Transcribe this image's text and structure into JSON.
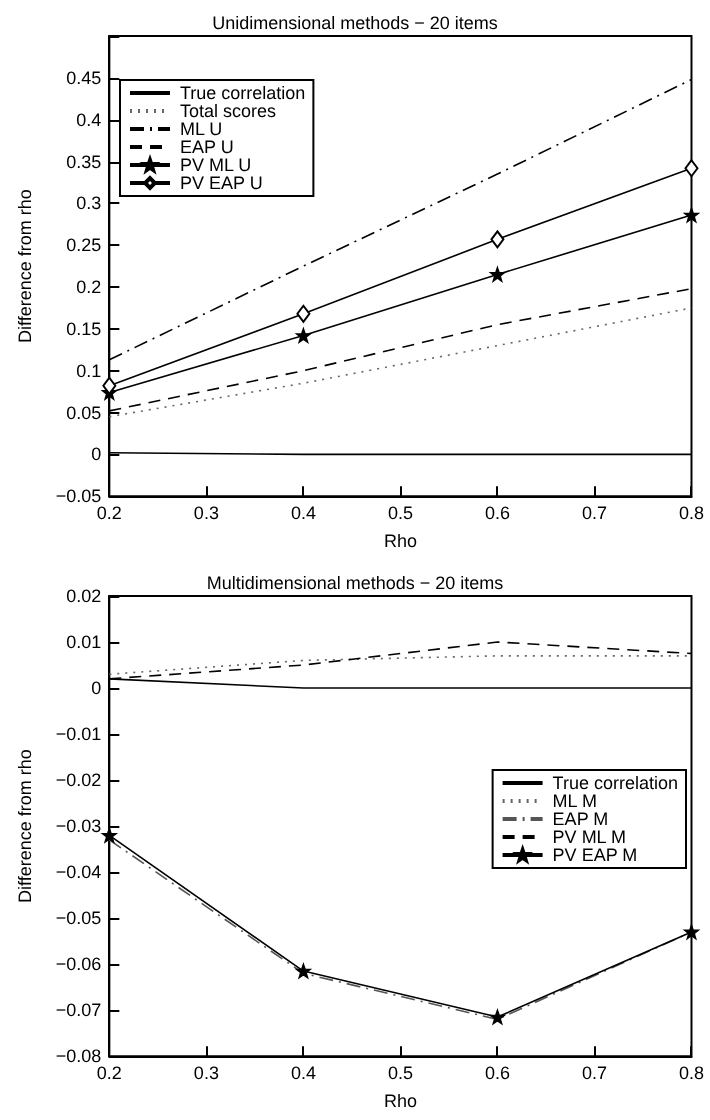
{
  "chart_data": [
    {
      "type": "line",
      "title": "Unidimensional methods − 20 items",
      "xlabel": "Rho",
      "ylabel": "Difference from rho",
      "x": [
        0.2,
        0.4,
        0.6,
        0.8
      ],
      "xlim": [
        0.2,
        0.8
      ],
      "xticks": [
        0.2,
        0.3,
        0.4,
        0.5,
        0.6,
        0.7,
        0.8
      ],
      "ylim": [
        -0.05,
        0.5
      ],
      "yticks": [
        -0.05,
        0,
        0.05,
        0.1,
        0.15,
        0.2,
        0.25,
        0.3,
        0.35,
        0.4,
        0.45,
        {
          "value": 0.5,
          "label": null
        }
      ],
      "grid": false,
      "legend": "top left",
      "series": [
        {
          "name": "True correlation",
          "color": "#000000",
          "line_style": "solid",
          "marker": "none",
          "values": [
            0.002,
            0,
            0,
            0
          ]
        },
        {
          "name": "Total scores",
          "color": "#666666",
          "line_style": "dotted",
          "marker": "none",
          "values": [
            0.045,
            0.085,
            0.13,
            0.175
          ]
        },
        {
          "name": "ML U",
          "color": "#000000",
          "line_style": "dashdot",
          "marker": "none",
          "values": [
            0.113,
            0.225,
            0.335,
            0.448
          ]
        },
        {
          "name": "EAP U",
          "color": "#000000",
          "line_style": "dashed",
          "marker": "none",
          "values": [
            0.052,
            0.1,
            0.155,
            0.198
          ]
        },
        {
          "name": "PV ML U",
          "color": "#000000",
          "line_style": "solid",
          "marker": "star",
          "values": [
            0.074,
            0.142,
            0.215,
            0.286
          ]
        },
        {
          "name": "PV EAP U",
          "color": "#000000",
          "line_style": "solid",
          "marker": "diamond",
          "values": [
            0.082,
            0.168,
            0.257,
            0.342
          ]
        }
      ]
    },
    {
      "type": "line",
      "title": "Multidimensional methods − 20 items",
      "xlabel": "Rho",
      "ylabel": "Difference from rho",
      "x": [
        0.2,
        0.4,
        0.6,
        0.8
      ],
      "xlim": [
        0.2,
        0.8
      ],
      "xticks": [
        0.2,
        0.3,
        0.4,
        0.5,
        0.6,
        0.7,
        0.8
      ],
      "ylim": [
        -0.08,
        0.02
      ],
      "yticks": [
        -0.08,
        -0.07,
        -0.06,
        -0.05,
        -0.04,
        -0.03,
        -0.02,
        -0.01,
        0,
        0.01,
        0.02
      ],
      "grid": false,
      "legend": "right",
      "series": [
        {
          "name": "True correlation",
          "color": "#000000",
          "line_style": "solid",
          "marker": "none",
          "values": [
            0.002,
            0,
            0,
            0
          ]
        },
        {
          "name": "ML M",
          "color": "#666666",
          "line_style": "dotted",
          "marker": "none",
          "values": [
            0.003,
            0.006,
            0.007,
            0.007
          ]
        },
        {
          "name": "EAP M",
          "color": "#555555",
          "line_style": "dashdot",
          "marker": "none",
          "values": [
            -0.033,
            -0.062,
            -0.072,
            -0.053
          ]
        },
        {
          "name": "PV ML M",
          "color": "#000000",
          "line_style": "dashed",
          "marker": "none",
          "values": [
            0.002,
            0.005,
            0.01,
            0.0075
          ]
        },
        {
          "name": "PV EAP M",
          "color": "#000000",
          "line_style": "solid",
          "marker": "star",
          "values": [
            -0.032,
            -0.0615,
            -0.0715,
            -0.053
          ]
        }
      ]
    }
  ]
}
